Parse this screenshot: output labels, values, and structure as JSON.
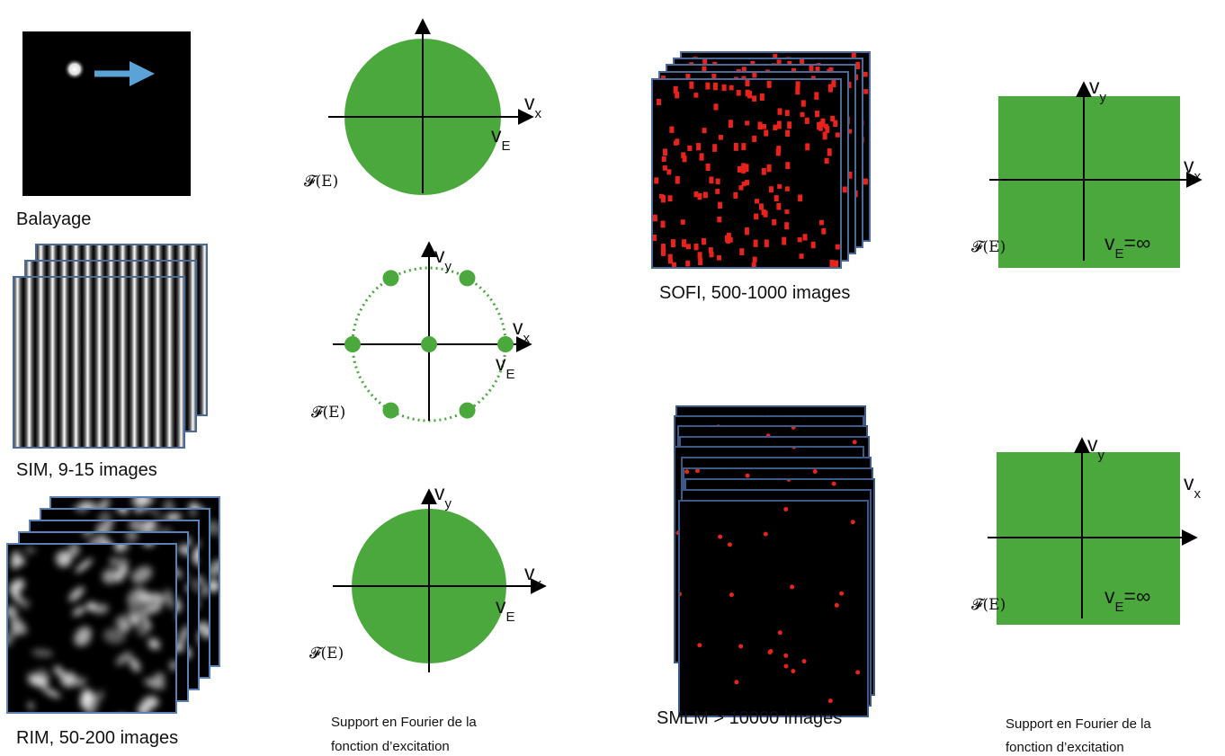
{
  "captions": {
    "scan": "Balayage",
    "sim": "SIM, 9-15 images",
    "rim": "RIM, 50-200 images",
    "sofi": "SOFI, 500-1000 images",
    "smlm": "SMLM > 10000 images"
  },
  "symbols": {
    "nu": "v",
    "x": "x",
    "y": "y",
    "E": "E",
    "fourier": "𝓕(E)",
    "infinity": "=∞"
  },
  "footnote": [
    "Support en Fourier de la",
    "fonction d’excitation"
  ]
}
